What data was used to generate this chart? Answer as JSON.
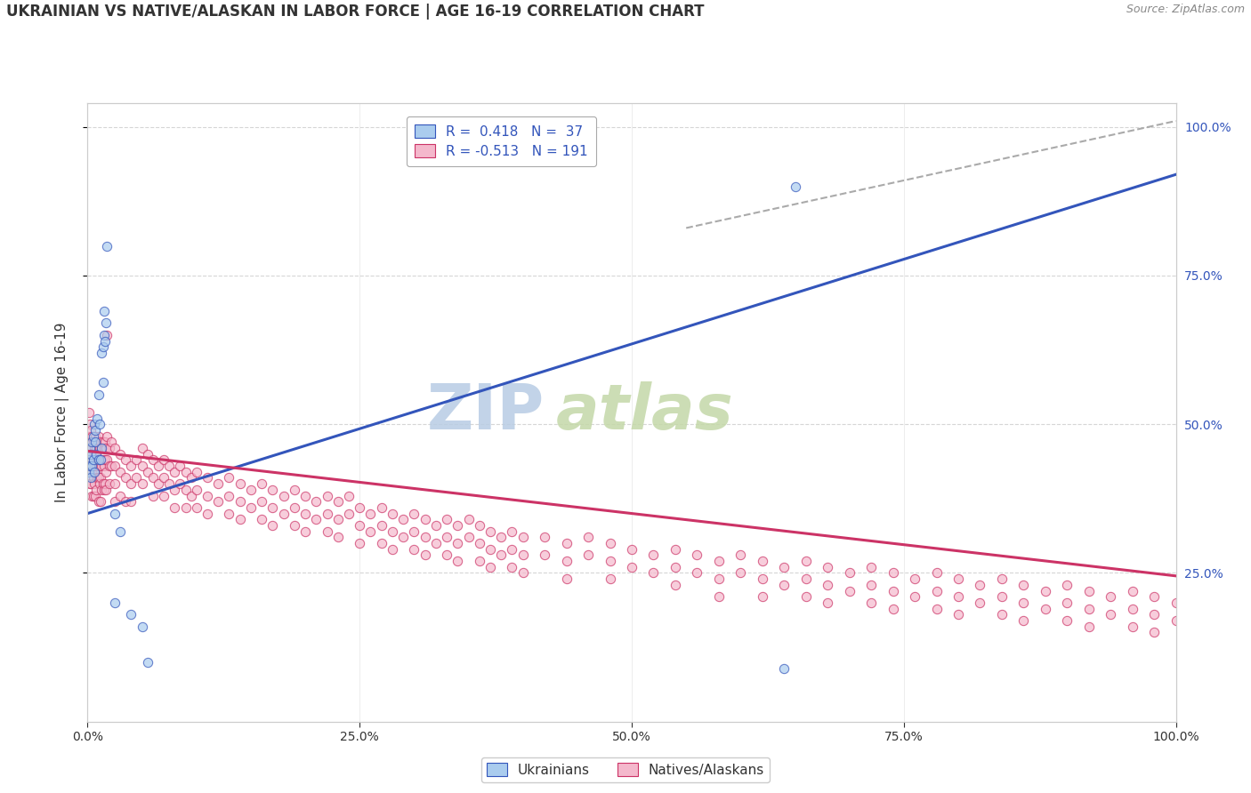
{
  "title": "UKRAINIAN VS NATIVE/ALASKAN IN LABOR FORCE | AGE 16-19 CORRELATION CHART",
  "source_text": "Source: ZipAtlas.com",
  "ylabel": "In Labor Force | Age 16-19",
  "watermark": "ZIPatlas",
  "blue_scatter": [
    [
      0.001,
      0.44
    ],
    [
      0.001,
      0.42
    ],
    [
      0.002,
      0.46
    ],
    [
      0.002,
      0.43
    ],
    [
      0.003,
      0.45
    ],
    [
      0.003,
      0.41
    ],
    [
      0.004,
      0.47
    ],
    [
      0.004,
      0.43
    ],
    [
      0.005,
      0.48
    ],
    [
      0.005,
      0.44
    ],
    [
      0.006,
      0.5
    ],
    [
      0.006,
      0.42
    ],
    [
      0.007,
      0.49
    ],
    [
      0.007,
      0.47
    ],
    [
      0.008,
      0.45
    ],
    [
      0.009,
      0.51
    ],
    [
      0.01,
      0.55
    ],
    [
      0.01,
      0.44
    ],
    [
      0.011,
      0.5
    ],
    [
      0.012,
      0.44
    ],
    [
      0.013,
      0.62
    ],
    [
      0.013,
      0.46
    ],
    [
      0.014,
      0.57
    ],
    [
      0.014,
      0.63
    ],
    [
      0.015,
      0.69
    ],
    [
      0.015,
      0.65
    ],
    [
      0.016,
      0.64
    ],
    [
      0.017,
      0.67
    ],
    [
      0.018,
      0.8
    ],
    [
      0.025,
      0.35
    ],
    [
      0.025,
      0.2
    ],
    [
      0.03,
      0.32
    ],
    [
      0.04,
      0.18
    ],
    [
      0.05,
      0.16
    ],
    [
      0.055,
      0.1
    ],
    [
      0.64,
      0.09
    ],
    [
      0.65,
      0.9
    ]
  ],
  "pink_scatter": [
    [
      0.001,
      0.52
    ],
    [
      0.001,
      0.48
    ],
    [
      0.001,
      0.44
    ],
    [
      0.002,
      0.5
    ],
    [
      0.002,
      0.47
    ],
    [
      0.002,
      0.43
    ],
    [
      0.002,
      0.4
    ],
    [
      0.003,
      0.49
    ],
    [
      0.003,
      0.46
    ],
    [
      0.003,
      0.43
    ],
    [
      0.003,
      0.4
    ],
    [
      0.004,
      0.48
    ],
    [
      0.004,
      0.45
    ],
    [
      0.004,
      0.42
    ],
    [
      0.004,
      0.38
    ],
    [
      0.005,
      0.47
    ],
    [
      0.005,
      0.44
    ],
    [
      0.005,
      0.41
    ],
    [
      0.005,
      0.38
    ],
    [
      0.006,
      0.46
    ],
    [
      0.006,
      0.43
    ],
    [
      0.006,
      0.4
    ],
    [
      0.007,
      0.48
    ],
    [
      0.007,
      0.45
    ],
    [
      0.007,
      0.42
    ],
    [
      0.007,
      0.38
    ],
    [
      0.008,
      0.46
    ],
    [
      0.008,
      0.43
    ],
    [
      0.008,
      0.39
    ],
    [
      0.009,
      0.47
    ],
    [
      0.009,
      0.44
    ],
    [
      0.009,
      0.41
    ],
    [
      0.01,
      0.48
    ],
    [
      0.01,
      0.44
    ],
    [
      0.01,
      0.41
    ],
    [
      0.01,
      0.37
    ],
    [
      0.011,
      0.46
    ],
    [
      0.011,
      0.43
    ],
    [
      0.011,
      0.4
    ],
    [
      0.012,
      0.47
    ],
    [
      0.012,
      0.44
    ],
    [
      0.012,
      0.41
    ],
    [
      0.012,
      0.37
    ],
    [
      0.013,
      0.46
    ],
    [
      0.013,
      0.43
    ],
    [
      0.013,
      0.39
    ],
    [
      0.014,
      0.47
    ],
    [
      0.014,
      0.44
    ],
    [
      0.014,
      0.4
    ],
    [
      0.015,
      0.46
    ],
    [
      0.015,
      0.43
    ],
    [
      0.015,
      0.39
    ],
    [
      0.016,
      0.47
    ],
    [
      0.016,
      0.44
    ],
    [
      0.016,
      0.4
    ],
    [
      0.017,
      0.46
    ],
    [
      0.017,
      0.42
    ],
    [
      0.017,
      0.39
    ],
    [
      0.018,
      0.65
    ],
    [
      0.018,
      0.48
    ],
    [
      0.018,
      0.44
    ],
    [
      0.02,
      0.46
    ],
    [
      0.02,
      0.43
    ],
    [
      0.02,
      0.4
    ],
    [
      0.022,
      0.47
    ],
    [
      0.022,
      0.43
    ],
    [
      0.025,
      0.46
    ],
    [
      0.025,
      0.43
    ],
    [
      0.025,
      0.4
    ],
    [
      0.025,
      0.37
    ],
    [
      0.03,
      0.45
    ],
    [
      0.03,
      0.42
    ],
    [
      0.03,
      0.38
    ],
    [
      0.035,
      0.44
    ],
    [
      0.035,
      0.41
    ],
    [
      0.035,
      0.37
    ],
    [
      0.04,
      0.43
    ],
    [
      0.04,
      0.4
    ],
    [
      0.04,
      0.37
    ],
    [
      0.045,
      0.44
    ],
    [
      0.045,
      0.41
    ],
    [
      0.05,
      0.46
    ],
    [
      0.05,
      0.43
    ],
    [
      0.05,
      0.4
    ],
    [
      0.055,
      0.45
    ],
    [
      0.055,
      0.42
    ],
    [
      0.06,
      0.44
    ],
    [
      0.06,
      0.41
    ],
    [
      0.06,
      0.38
    ],
    [
      0.065,
      0.43
    ],
    [
      0.065,
      0.4
    ],
    [
      0.07,
      0.44
    ],
    [
      0.07,
      0.41
    ],
    [
      0.07,
      0.38
    ],
    [
      0.075,
      0.43
    ],
    [
      0.075,
      0.4
    ],
    [
      0.08,
      0.42
    ],
    [
      0.08,
      0.39
    ],
    [
      0.08,
      0.36
    ],
    [
      0.085,
      0.43
    ],
    [
      0.085,
      0.4
    ],
    [
      0.09,
      0.42
    ],
    [
      0.09,
      0.39
    ],
    [
      0.09,
      0.36
    ],
    [
      0.095,
      0.41
    ],
    [
      0.095,
      0.38
    ],
    [
      0.1,
      0.42
    ],
    [
      0.1,
      0.39
    ],
    [
      0.1,
      0.36
    ],
    [
      0.11,
      0.41
    ],
    [
      0.11,
      0.38
    ],
    [
      0.11,
      0.35
    ],
    [
      0.12,
      0.4
    ],
    [
      0.12,
      0.37
    ],
    [
      0.13,
      0.41
    ],
    [
      0.13,
      0.38
    ],
    [
      0.13,
      0.35
    ],
    [
      0.14,
      0.4
    ],
    [
      0.14,
      0.37
    ],
    [
      0.14,
      0.34
    ],
    [
      0.15,
      0.39
    ],
    [
      0.15,
      0.36
    ],
    [
      0.16,
      0.4
    ],
    [
      0.16,
      0.37
    ],
    [
      0.16,
      0.34
    ],
    [
      0.17,
      0.39
    ],
    [
      0.17,
      0.36
    ],
    [
      0.17,
      0.33
    ],
    [
      0.18,
      0.38
    ],
    [
      0.18,
      0.35
    ],
    [
      0.19,
      0.39
    ],
    [
      0.19,
      0.36
    ],
    [
      0.19,
      0.33
    ],
    [
      0.2,
      0.38
    ],
    [
      0.2,
      0.35
    ],
    [
      0.2,
      0.32
    ],
    [
      0.21,
      0.37
    ],
    [
      0.21,
      0.34
    ],
    [
      0.22,
      0.38
    ],
    [
      0.22,
      0.35
    ],
    [
      0.22,
      0.32
    ],
    [
      0.23,
      0.37
    ],
    [
      0.23,
      0.34
    ],
    [
      0.23,
      0.31
    ],
    [
      0.24,
      0.38
    ],
    [
      0.24,
      0.35
    ],
    [
      0.25,
      0.36
    ],
    [
      0.25,
      0.33
    ],
    [
      0.25,
      0.3
    ],
    [
      0.26,
      0.35
    ],
    [
      0.26,
      0.32
    ],
    [
      0.27,
      0.36
    ],
    [
      0.27,
      0.33
    ],
    [
      0.27,
      0.3
    ],
    [
      0.28,
      0.35
    ],
    [
      0.28,
      0.32
    ],
    [
      0.28,
      0.29
    ],
    [
      0.29,
      0.34
    ],
    [
      0.29,
      0.31
    ],
    [
      0.3,
      0.35
    ],
    [
      0.3,
      0.32
    ],
    [
      0.3,
      0.29
    ],
    [
      0.31,
      0.34
    ],
    [
      0.31,
      0.31
    ],
    [
      0.31,
      0.28
    ],
    [
      0.32,
      0.33
    ],
    [
      0.32,
      0.3
    ],
    [
      0.33,
      0.34
    ],
    [
      0.33,
      0.31
    ],
    [
      0.33,
      0.28
    ],
    [
      0.34,
      0.33
    ],
    [
      0.34,
      0.3
    ],
    [
      0.34,
      0.27
    ],
    [
      0.35,
      0.34
    ],
    [
      0.35,
      0.31
    ],
    [
      0.36,
      0.33
    ],
    [
      0.36,
      0.3
    ],
    [
      0.36,
      0.27
    ],
    [
      0.37,
      0.32
    ],
    [
      0.37,
      0.29
    ],
    [
      0.37,
      0.26
    ],
    [
      0.38,
      0.31
    ],
    [
      0.38,
      0.28
    ],
    [
      0.39,
      0.32
    ],
    [
      0.39,
      0.29
    ],
    [
      0.39,
      0.26
    ],
    [
      0.4,
      0.31
    ],
    [
      0.4,
      0.28
    ],
    [
      0.4,
      0.25
    ],
    [
      0.42,
      0.31
    ],
    [
      0.42,
      0.28
    ],
    [
      0.44,
      0.3
    ],
    [
      0.44,
      0.27
    ],
    [
      0.44,
      0.24
    ],
    [
      0.46,
      0.31
    ],
    [
      0.46,
      0.28
    ],
    [
      0.48,
      0.3
    ],
    [
      0.48,
      0.27
    ],
    [
      0.48,
      0.24
    ],
    [
      0.5,
      0.29
    ],
    [
      0.5,
      0.26
    ],
    [
      0.52,
      0.28
    ],
    [
      0.52,
      0.25
    ],
    [
      0.54,
      0.29
    ],
    [
      0.54,
      0.26
    ],
    [
      0.54,
      0.23
    ],
    [
      0.56,
      0.28
    ],
    [
      0.56,
      0.25
    ],
    [
      0.58,
      0.27
    ],
    [
      0.58,
      0.24
    ],
    [
      0.58,
      0.21
    ],
    [
      0.6,
      0.28
    ],
    [
      0.6,
      0.25
    ],
    [
      0.62,
      0.27
    ],
    [
      0.62,
      0.24
    ],
    [
      0.62,
      0.21
    ],
    [
      0.64,
      0.26
    ],
    [
      0.64,
      0.23
    ],
    [
      0.66,
      0.27
    ],
    [
      0.66,
      0.24
    ],
    [
      0.66,
      0.21
    ],
    [
      0.68,
      0.26
    ],
    [
      0.68,
      0.23
    ],
    [
      0.68,
      0.2
    ],
    [
      0.7,
      0.25
    ],
    [
      0.7,
      0.22
    ],
    [
      0.72,
      0.26
    ],
    [
      0.72,
      0.23
    ],
    [
      0.72,
      0.2
    ],
    [
      0.74,
      0.25
    ],
    [
      0.74,
      0.22
    ],
    [
      0.74,
      0.19
    ],
    [
      0.76,
      0.24
    ],
    [
      0.76,
      0.21
    ],
    [
      0.78,
      0.25
    ],
    [
      0.78,
      0.22
    ],
    [
      0.78,
      0.19
    ],
    [
      0.8,
      0.24
    ],
    [
      0.8,
      0.21
    ],
    [
      0.8,
      0.18
    ],
    [
      0.82,
      0.23
    ],
    [
      0.82,
      0.2
    ],
    [
      0.84,
      0.24
    ],
    [
      0.84,
      0.21
    ],
    [
      0.84,
      0.18
    ],
    [
      0.86,
      0.23
    ],
    [
      0.86,
      0.2
    ],
    [
      0.86,
      0.17
    ],
    [
      0.88,
      0.22
    ],
    [
      0.88,
      0.19
    ],
    [
      0.9,
      0.23
    ],
    [
      0.9,
      0.2
    ],
    [
      0.9,
      0.17
    ],
    [
      0.92,
      0.22
    ],
    [
      0.92,
      0.19
    ],
    [
      0.92,
      0.16
    ],
    [
      0.94,
      0.21
    ],
    [
      0.94,
      0.18
    ],
    [
      0.96,
      0.22
    ],
    [
      0.96,
      0.19
    ],
    [
      0.96,
      0.16
    ],
    [
      0.98,
      0.21
    ],
    [
      0.98,
      0.18
    ],
    [
      0.98,
      0.15
    ],
    [
      1.0,
      0.2
    ],
    [
      1.0,
      0.17
    ]
  ],
  "blue_line": {
    "x0": 0.0,
    "y0": 0.35,
    "x1": 1.0,
    "y1": 0.92
  },
  "pink_line": {
    "x0": 0.0,
    "y0": 0.455,
    "x1": 1.0,
    "y1": 0.245
  },
  "gray_dashed_line": {
    "x0": 0.55,
    "y0": 0.83,
    "x1": 1.0,
    "y1": 1.01
  },
  "ytick_labels": [
    "25.0%",
    "50.0%",
    "75.0%",
    "100.0%"
  ],
  "ytick_values": [
    0.25,
    0.5,
    0.75,
    1.0
  ],
  "xtick_labels": [
    "0.0%",
    "25.0%",
    "50.0%",
    "75.0%",
    "100.0%"
  ],
  "xtick_values": [
    0.0,
    0.25,
    0.5,
    0.75,
    1.0
  ],
  "xlim": [
    0.0,
    1.0
  ],
  "ylim": [
    0.0,
    1.04
  ],
  "grid_color": "#cccccc",
  "blue_color": "#aaccee",
  "pink_color": "#f4b8cc",
  "blue_line_color": "#3355bb",
  "pink_line_color": "#cc3366",
  "background_color": "#ffffff",
  "title_fontsize": 12,
  "axis_label_fontsize": 11,
  "tick_fontsize": 10,
  "watermark_color_zip": "#b8cce4",
  "watermark_color_atlas": "#c4d8a8",
  "watermark_fontsize": 52
}
